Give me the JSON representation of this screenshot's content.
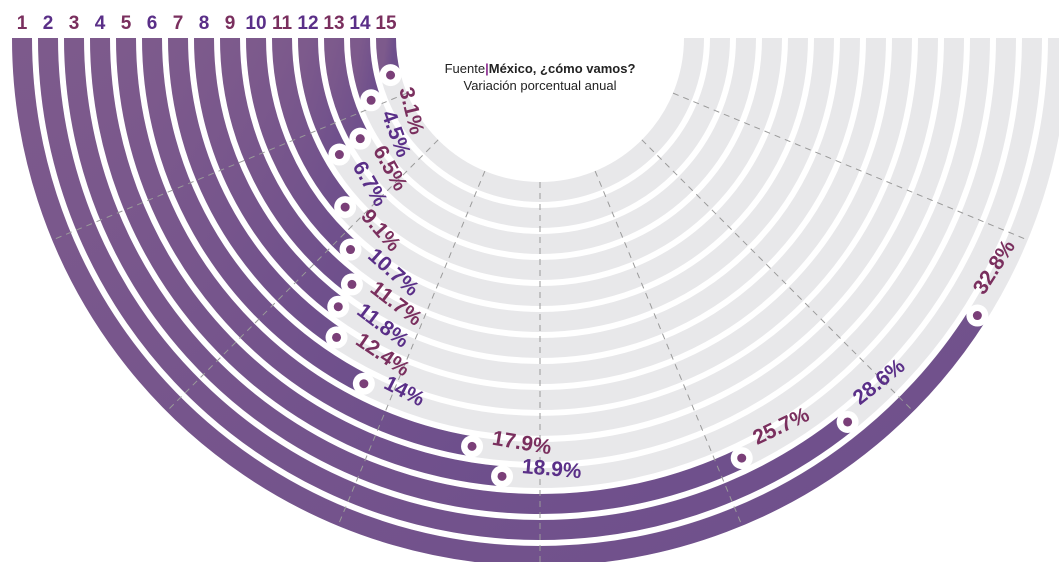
{
  "source": {
    "label": "Fuente",
    "name": "México, ¿cómo vamos?",
    "subtitle": "Variación porcentual anual"
  },
  "colors": {
    "ring_start": "#7d5a8c",
    "ring_end": "#6e4f8c",
    "track": "#e8e8ea",
    "label_a": "#7a2f5e",
    "label_b": "#5a2f88",
    "dot": "#7a3f78",
    "gridline": "#9a9a9a"
  },
  "chart_data": {
    "type": "radial-bar",
    "scale_max": 40,
    "categories": [
      "1",
      "2",
      "3",
      "4",
      "5",
      "6",
      "7",
      "8",
      "9",
      "10",
      "11",
      "12",
      "13",
      "14",
      "15"
    ],
    "values": [
      32.8,
      28.6,
      25.7,
      18.9,
      17.9,
      14,
      12.4,
      11.8,
      11.7,
      10.7,
      9.1,
      6.7,
      6.5,
      4.5,
      3.1
    ],
    "value_labels": [
      "32.8%",
      "28.6%",
      "25.7%",
      "18.9%",
      "17.9%",
      "14%",
      "12.4%",
      "11.8%",
      "11.7%",
      "10.7%",
      "9.1%",
      "6.7%",
      "6.5%",
      "4.5%",
      "3.1%"
    ],
    "grid": true
  }
}
